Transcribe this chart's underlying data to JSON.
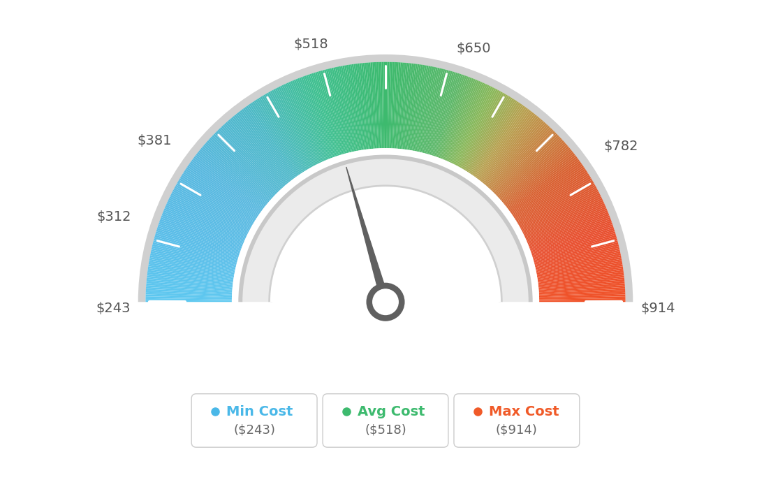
{
  "min_val": 243,
  "max_val": 914,
  "avg_val": 518,
  "tick_labels": [
    "$243",
    "$312",
    "$381",
    "$518",
    "$650",
    "$782",
    "$914"
  ],
  "tick_values": [
    243,
    312,
    381,
    518,
    650,
    782,
    914
  ],
  "legend": [
    {
      "label": "Min Cost",
      "value": "($243)",
      "color": "#4ab8e8"
    },
    {
      "label": "Avg Cost",
      "value": "($518)",
      "color": "#3dba6e"
    },
    {
      "label": "Max Cost",
      "value": "($914)",
      "color": "#f05a28"
    }
  ],
  "color_stops": [
    [
      0.0,
      "#5ec8f0"
    ],
    [
      0.1,
      "#5abde8"
    ],
    [
      0.2,
      "#58b8df"
    ],
    [
      0.3,
      "#4db8c8"
    ],
    [
      0.4,
      "#40c090"
    ],
    [
      0.5,
      "#3dba6e"
    ],
    [
      0.6,
      "#5db86a"
    ],
    [
      0.65,
      "#8ab85a"
    ],
    [
      0.7,
      "#b8a050"
    ],
    [
      0.75,
      "#c88040"
    ],
    [
      0.8,
      "#d86030"
    ],
    [
      0.9,
      "#e85030"
    ],
    [
      1.0,
      "#f05228"
    ]
  ],
  "background_color": "#ffffff",
  "needle_color": "#606060",
  "outer_border_color": "#d0d0d0",
  "inner_ring_color": "#f0f0f0",
  "inner_border_color": "#d8d8d8"
}
